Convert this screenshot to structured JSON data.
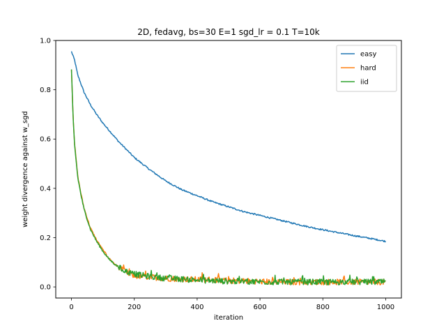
{
  "chart_data": {
    "type": "line",
    "title": "2D, fedavg, bs=30 E=1 sgd_lr = 0.1 T=10k",
    "xlabel": "iteration",
    "ylabel": "weight divergence against w_sgd",
    "xlim": [
      -50,
      1050
    ],
    "ylim": [
      -0.045,
      1.0
    ],
    "xticks": [
      0,
      200,
      400,
      600,
      800,
      1000
    ],
    "yticks": [
      0.0,
      0.2,
      0.4,
      0.6,
      0.8,
      1.0
    ],
    "xtick_labels": [
      "0",
      "200",
      "400",
      "600",
      "800",
      "1000"
    ],
    "ytick_labels": [
      "0.0",
      "0.2",
      "0.4",
      "0.6",
      "0.8",
      "1.0"
    ],
    "grid": false,
    "legend_position": "top-right",
    "series": [
      {
        "name": "easy",
        "color": "#1f77b4",
        "x": [
          0,
          10,
          20,
          40,
          60,
          80,
          100,
          150,
          200,
          250,
          300,
          350,
          400,
          450,
          500,
          550,
          600,
          650,
          700,
          750,
          800,
          850,
          900,
          950,
          1000
        ],
        "y": [
          0.955,
          0.92,
          0.86,
          0.79,
          0.74,
          0.7,
          0.665,
          0.59,
          0.525,
          0.475,
          0.43,
          0.395,
          0.37,
          0.345,
          0.325,
          0.305,
          0.29,
          0.275,
          0.26,
          0.245,
          0.232,
          0.22,
          0.208,
          0.197,
          0.185
        ]
      },
      {
        "name": "hard",
        "color": "#ff7f0e",
        "x": [
          0,
          5,
          10,
          20,
          30,
          40,
          50,
          60,
          80,
          100,
          120,
          140,
          160,
          180,
          200,
          250,
          300,
          350,
          400,
          450,
          500,
          550,
          600,
          650,
          700,
          750,
          800,
          850,
          900,
          950,
          1000
        ],
        "y": [
          0.885,
          0.7,
          0.58,
          0.45,
          0.38,
          0.32,
          0.28,
          0.24,
          0.19,
          0.15,
          0.115,
          0.09,
          0.07,
          0.055,
          0.045,
          0.04,
          0.035,
          0.032,
          0.03,
          0.03,
          0.025,
          0.025,
          0.022,
          0.02,
          0.02,
          0.02,
          0.02,
          0.02,
          0.02,
          0.02,
          0.02
        ]
      },
      {
        "name": "iid",
        "color": "#2ca02c",
        "x": [
          0,
          5,
          10,
          20,
          30,
          40,
          50,
          60,
          80,
          100,
          120,
          140,
          160,
          180,
          200,
          250,
          300,
          350,
          400,
          450,
          500,
          550,
          600,
          650,
          700,
          750,
          800,
          850,
          900,
          950,
          1000
        ],
        "y": [
          0.88,
          0.69,
          0.575,
          0.445,
          0.375,
          0.315,
          0.275,
          0.235,
          0.185,
          0.145,
          0.112,
          0.09,
          0.072,
          0.06,
          0.052,
          0.042,
          0.035,
          0.032,
          0.028,
          0.025,
          0.023,
          0.022,
          0.021,
          0.02,
          0.02,
          0.02,
          0.02,
          0.02,
          0.02,
          0.02,
          0.02
        ]
      }
    ]
  }
}
